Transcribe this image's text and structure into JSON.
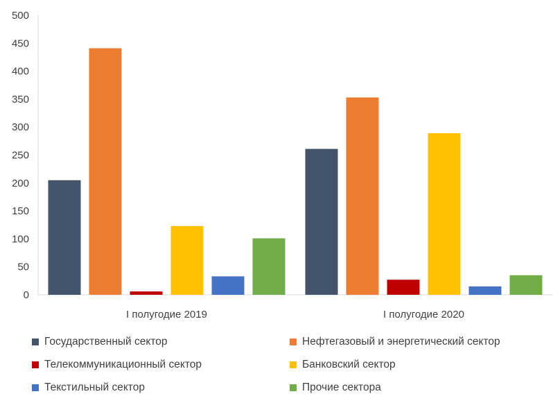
{
  "chart_data": {
    "type": "bar",
    "categories": [
      "I полугодие 2019",
      "I полугодие 2020"
    ],
    "series": [
      {
        "name": "Государственный сектор",
        "color": "#44546A",
        "values": [
          205,
          261
        ]
      },
      {
        "name": "Нефтегазовый и энергетический сектор",
        "color": "#ED7D31",
        "values": [
          441,
          353
        ]
      },
      {
        "name": "Телекоммуникационный сектор",
        "color": "#C00000",
        "values": [
          6,
          27
        ]
      },
      {
        "name": "Банковский сектор",
        "color": "#FFC000",
        "values": [
          123,
          289
        ]
      },
      {
        "name": "Текстильный сектор",
        "color": "#4472C4",
        "values": [
          33,
          15
        ]
      },
      {
        "name": "Прочие сектора",
        "color": "#70AD47",
        "values": [
          101,
          35
        ]
      }
    ],
    "ylim": [
      0,
      500
    ],
    "yticks": [
      0,
      50,
      100,
      150,
      200,
      250,
      300,
      350,
      400,
      450,
      500
    ],
    "grid": false,
    "legend": "bottom"
  }
}
